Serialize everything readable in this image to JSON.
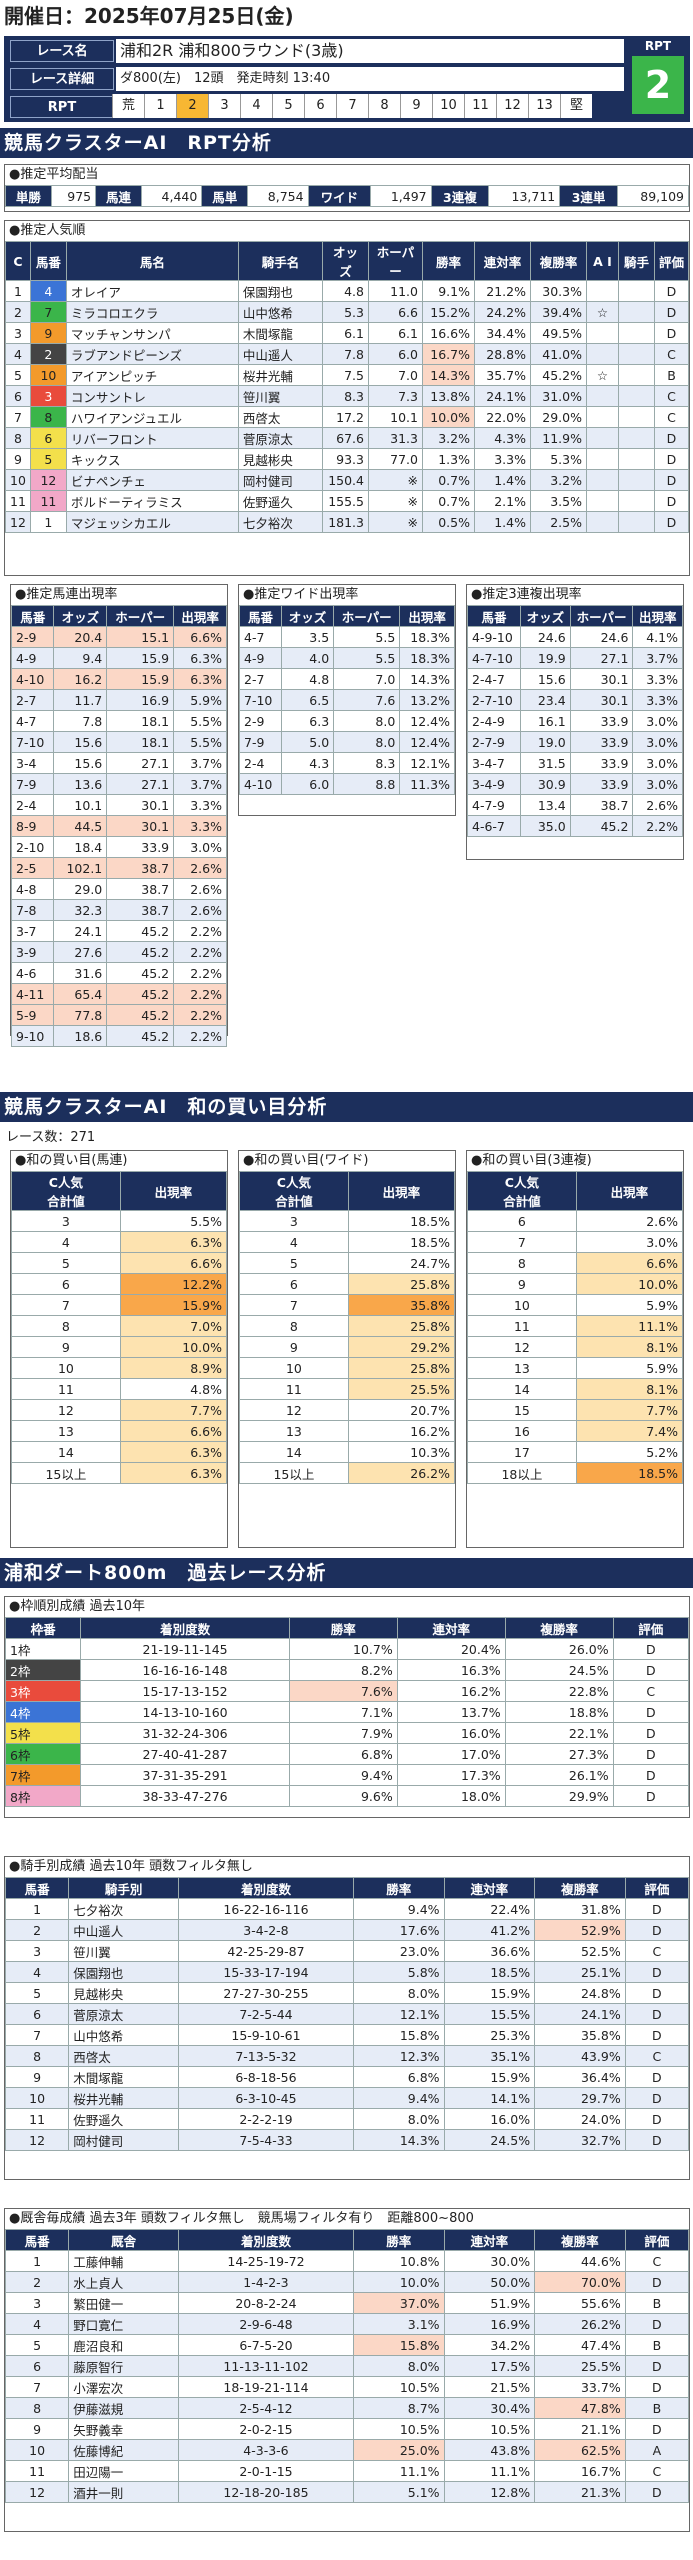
{
  "header": {
    "date_line": "開催日：2025年07月25日(金)",
    "race_name_label": "レース名",
    "race_name": "浦和2R 浦和800ラウンド(3歳)",
    "race_detail_label": "レース詳細",
    "race_detail": "ダ800(左)　12頭　発走時刻 13:40",
    "rpt_label": "RPT",
    "rpt_value": "2",
    "rpt_scale": [
      "荒",
      "1",
      "2",
      "3",
      "4",
      "5",
      "6",
      "7",
      "8",
      "9",
      "10",
      "11",
      "12",
      "13",
      "堅"
    ],
    "rpt_highlight_index": 2
  },
  "section1_title": "競馬クラスターAI　RPT分析",
  "payout": {
    "caption": "●推定平均配当",
    "items": [
      {
        "label": "単勝",
        "value": "975"
      },
      {
        "label": "馬連",
        "value": "4,440"
      },
      {
        "label": "馬単",
        "value": "8,754"
      },
      {
        "label": "ワイド",
        "value": "1,497"
      },
      {
        "label": "3連複",
        "value": "13,711"
      },
      {
        "label": "3連単",
        "value": "89,109"
      }
    ]
  },
  "popularity": {
    "caption": "●推定人気順",
    "headers": [
      "C",
      "馬番",
      "馬名",
      "騎手名",
      "オッズ",
      "ホーパー",
      "勝率",
      "連対率",
      "複勝率",
      "A I",
      "騎手",
      "評価"
    ],
    "rows": [
      [
        "1",
        "4",
        "オレイア",
        "保園翔也",
        "4.8",
        "11.0",
        "9.1%",
        "21.2%",
        "30.3%",
        "",
        "",
        "D"
      ],
      [
        "2",
        "7",
        "ミラコロエクラ",
        "山中悠希",
        "5.3",
        "6.6",
        "15.2%",
        "24.2%",
        "39.4%",
        "☆",
        "",
        "D"
      ],
      [
        "3",
        "9",
        "マッチャンサンパ",
        "木間塚龍",
        "6.1",
        "6.1",
        "16.6%",
        "34.4%",
        "49.5%",
        "",
        "",
        "D"
      ],
      [
        "4",
        "2",
        "ラブアンドピーンズ",
        "中山遥人",
        "7.8",
        "6.0",
        "16.7%",
        "28.8%",
        "41.0%",
        "",
        "",
        "C"
      ],
      [
        "5",
        "10",
        "アイアンピッチ",
        "桜井光輔",
        "7.5",
        "7.0",
        "14.3%",
        "35.7%",
        "45.2%",
        "☆",
        "",
        "B"
      ],
      [
        "6",
        "3",
        "コンサントレ",
        "笹川翼",
        "8.3",
        "7.3",
        "13.8%",
        "24.1%",
        "31.0%",
        "",
        "",
        "C"
      ],
      [
        "7",
        "8",
        "ハワイアンジュエル",
        "西啓太",
        "17.2",
        "10.1",
        "10.0%",
        "22.0%",
        "29.0%",
        "",
        "",
        "C"
      ],
      [
        "8",
        "6",
        "リバーフロント",
        "菅原涼太",
        "67.6",
        "31.3",
        "3.2%",
        "4.3%",
        "11.9%",
        "",
        "",
        "D"
      ],
      [
        "9",
        "5",
        "キックス",
        "見越彬央",
        "93.3",
        "77.0",
        "1.3%",
        "3.3%",
        "5.3%",
        "",
        "",
        "D"
      ],
      [
        "10",
        "12",
        "ビナペンチェ",
        "岡村健司",
        "150.4",
        "※",
        "0.7%",
        "1.4%",
        "3.2%",
        "",
        "",
        "D"
      ],
      [
        "11",
        "11",
        "ボルドーティラミス",
        "佐野遥久",
        "155.5",
        "※",
        "0.7%",
        "2.1%",
        "3.5%",
        "",
        "",
        "D"
      ],
      [
        "12",
        "1",
        "マジェッシカエル",
        "七夕裕次",
        "181.3",
        "※",
        "0.5%",
        "1.4%",
        "2.5%",
        "",
        "",
        "D"
      ]
    ]
  },
  "umaren": {
    "caption": "●推定馬連出現率",
    "headers": [
      "馬番",
      "オッズ",
      "ホーパー",
      "出現率"
    ],
    "rows": [
      [
        "2-9",
        "20.4",
        "15.1",
        "6.6%"
      ],
      [
        "4-9",
        "9.4",
        "15.9",
        "6.3%"
      ],
      [
        "4-10",
        "16.2",
        "15.9",
        "6.3%"
      ],
      [
        "2-7",
        "11.7",
        "16.9",
        "5.9%"
      ],
      [
        "4-7",
        "7.8",
        "18.1",
        "5.5%"
      ],
      [
        "7-10",
        "15.6",
        "18.1",
        "5.5%"
      ],
      [
        "3-4",
        "15.6",
        "27.1",
        "3.7%"
      ],
      [
        "7-9",
        "13.6",
        "27.1",
        "3.7%"
      ],
      [
        "2-4",
        "10.1",
        "30.1",
        "3.3%"
      ],
      [
        "8-9",
        "44.5",
        "30.1",
        "3.3%"
      ],
      [
        "2-10",
        "18.4",
        "33.9",
        "3.0%"
      ],
      [
        "2-5",
        "102.1",
        "38.7",
        "2.6%"
      ],
      [
        "4-8",
        "29.0",
        "38.7",
        "2.6%"
      ],
      [
        "7-8",
        "32.3",
        "38.7",
        "2.6%"
      ],
      [
        "3-7",
        "24.1",
        "45.2",
        "2.2%"
      ],
      [
        "3-9",
        "27.6",
        "45.2",
        "2.2%"
      ],
      [
        "4-6",
        "31.6",
        "45.2",
        "2.2%"
      ],
      [
        "4-11",
        "65.4",
        "45.2",
        "2.2%"
      ],
      [
        "5-9",
        "77.8",
        "45.2",
        "2.2%"
      ],
      [
        "9-10",
        "18.6",
        "45.2",
        "2.2%"
      ]
    ]
  },
  "wide": {
    "caption": "●推定ワイド出現率",
    "headers": [
      "馬番",
      "オッズ",
      "ホーパー",
      "出現率"
    ],
    "rows": [
      [
        "4-7",
        "3.5",
        "5.5",
        "18.3%"
      ],
      [
        "4-9",
        "4.0",
        "5.5",
        "18.3%"
      ],
      [
        "2-7",
        "4.8",
        "7.0",
        "14.3%"
      ],
      [
        "7-10",
        "6.5",
        "7.6",
        "13.2%"
      ],
      [
        "2-9",
        "6.3",
        "8.0",
        "12.4%"
      ],
      [
        "7-9",
        "5.0",
        "8.0",
        "12.4%"
      ],
      [
        "2-4",
        "4.3",
        "8.3",
        "12.1%"
      ],
      [
        "4-10",
        "6.0",
        "8.8",
        "11.3%"
      ]
    ]
  },
  "trio": {
    "caption": "●推定3連複出現率",
    "headers": [
      "馬番",
      "オッズ",
      "ホーパー",
      "出現率"
    ],
    "rows": [
      [
        "4-9-10",
        "24.6",
        "24.6",
        "4.1%"
      ],
      [
        "4-7-10",
        "19.9",
        "27.1",
        "3.7%"
      ],
      [
        "2-4-7",
        "15.6",
        "30.1",
        "3.3%"
      ],
      [
        "2-7-10",
        "23.4",
        "30.1",
        "3.3%"
      ],
      [
        "2-4-9",
        "16.1",
        "33.9",
        "3.0%"
      ],
      [
        "2-7-9",
        "19.0",
        "33.9",
        "3.0%"
      ],
      [
        "3-4-7",
        "31.5",
        "33.9",
        "3.0%"
      ],
      [
        "3-4-9",
        "30.9",
        "33.9",
        "3.0%"
      ],
      [
        "4-7-9",
        "13.4",
        "38.7",
        "2.6%"
      ],
      [
        "4-6-7",
        "35.0",
        "45.2",
        "2.2%"
      ]
    ]
  },
  "section2_title": "競馬クラスターAI　和の買い目分析",
  "race_count": "レース数：271",
  "wa_umaren": {
    "caption": "●和の買い目(馬連)",
    "headers": [
      "C人気\n合計値",
      "出現率"
    ],
    "rows": [
      [
        "3",
        "5.5%"
      ],
      [
        "4",
        "6.3%"
      ],
      [
        "5",
        "6.6%"
      ],
      [
        "6",
        "12.2%"
      ],
      [
        "7",
        "15.9%"
      ],
      [
        "8",
        "7.0%"
      ],
      [
        "9",
        "10.0%"
      ],
      [
        "10",
        "8.9%"
      ],
      [
        "11",
        "4.8%"
      ],
      [
        "12",
        "7.7%"
      ],
      [
        "13",
        "6.6%"
      ],
      [
        "14",
        "6.3%"
      ],
      [
        "15以上",
        "6.3%"
      ]
    ]
  },
  "wa_wide": {
    "caption": "●和の買い目(ワイド)",
    "headers": [
      "C人気\n合計値",
      "出現率"
    ],
    "rows": [
      [
        "3",
        "18.5%"
      ],
      [
        "4",
        "18.5%"
      ],
      [
        "5",
        "24.7%"
      ],
      [
        "6",
        "25.8%"
      ],
      [
        "7",
        "35.8%"
      ],
      [
        "8",
        "25.8%"
      ],
      [
        "9",
        "29.2%"
      ],
      [
        "10",
        "25.8%"
      ],
      [
        "11",
        "25.5%"
      ],
      [
        "12",
        "20.7%"
      ],
      [
        "13",
        "16.2%"
      ],
      [
        "14",
        "10.3%"
      ],
      [
        "15以上",
        "26.2%"
      ]
    ]
  },
  "wa_trio": {
    "caption": "●和の買い目(3連複)",
    "headers": [
      "C人気\n合計値",
      "出現率"
    ],
    "rows": [
      [
        "6",
        "2.6%"
      ],
      [
        "7",
        "3.0%"
      ],
      [
        "8",
        "6.6%"
      ],
      [
        "9",
        "10.0%"
      ],
      [
        "10",
        "5.9%"
      ],
      [
        "11",
        "11.1%"
      ],
      [
        "12",
        "8.1%"
      ],
      [
        "13",
        "5.9%"
      ],
      [
        "14",
        "8.1%"
      ],
      [
        "15",
        "7.7%"
      ],
      [
        "16",
        "7.4%"
      ],
      [
        "17",
        "5.2%"
      ],
      [
        "18以上",
        "18.5%"
      ]
    ]
  },
  "section3_title": "浦和ダート800m　過去レース分析",
  "waku": {
    "caption": "●枠順別成績 過去10年",
    "headers": [
      "枠番",
      "着別度数",
      "勝率",
      "連対率",
      "複勝率",
      "評価"
    ],
    "rows": [
      [
        "1枠",
        "21-19-11-145",
        "10.7%",
        "20.4%",
        "26.0%",
        "D"
      ],
      [
        "2枠",
        "16-16-16-148",
        "8.2%",
        "16.3%",
        "24.5%",
        "D"
      ],
      [
        "3枠",
        "15-17-13-152",
        "7.6%",
        "16.2%",
        "22.8%",
        "C"
      ],
      [
        "4枠",
        "14-13-10-160",
        "7.1%",
        "13.7%",
        "18.8%",
        "D"
      ],
      [
        "5枠",
        "31-32-24-306",
        "7.9%",
        "16.0%",
        "22.1%",
        "D"
      ],
      [
        "6枠",
        "27-40-41-287",
        "6.8%",
        "17.0%",
        "27.3%",
        "D"
      ],
      [
        "7枠",
        "37-31-35-291",
        "9.4%",
        "17.3%",
        "26.1%",
        "D"
      ],
      [
        "8枠",
        "38-33-47-276",
        "9.6%",
        "18.0%",
        "29.9%",
        "D"
      ]
    ]
  },
  "jockey": {
    "caption": "●騎手別成績 過去10年 頭数フィルタ無し",
    "headers": [
      "馬番",
      "騎手別",
      "着別度数",
      "勝率",
      "連対率",
      "複勝率",
      "評価"
    ],
    "rows": [
      [
        "1",
        "七夕裕次",
        "16-22-16-116",
        "9.4%",
        "22.4%",
        "31.8%",
        "D"
      ],
      [
        "2",
        "中山遥人",
        "3-4-2-8",
        "17.6%",
        "41.2%",
        "52.9%",
        "D"
      ],
      [
        "3",
        "笹川翼",
        "42-25-29-87",
        "23.0%",
        "36.6%",
        "52.5%",
        "C"
      ],
      [
        "4",
        "保園翔也",
        "15-33-17-194",
        "5.8%",
        "18.5%",
        "25.1%",
        "D"
      ],
      [
        "5",
        "見越彬央",
        "27-27-30-255",
        "8.0%",
        "15.9%",
        "24.8%",
        "D"
      ],
      [
        "6",
        "菅原涼太",
        "7-2-5-44",
        "12.1%",
        "15.5%",
        "24.1%",
        "D"
      ],
      [
        "7",
        "山中悠希",
        "15-9-10-61",
        "15.8%",
        "25.3%",
        "35.8%",
        "D"
      ],
      [
        "8",
        "西啓太",
        "7-13-5-32",
        "12.3%",
        "35.1%",
        "43.9%",
        "C"
      ],
      [
        "9",
        "木間塚龍",
        "6-8-18-56",
        "6.8%",
        "15.9%",
        "36.4%",
        "D"
      ],
      [
        "10",
        "桜井光輔",
        "6-3-10-45",
        "9.4%",
        "14.1%",
        "29.7%",
        "D"
      ],
      [
        "11",
        "佐野遥久",
        "2-2-2-19",
        "8.0%",
        "16.0%",
        "24.0%",
        "D"
      ],
      [
        "12",
        "岡村健司",
        "7-5-4-33",
        "14.3%",
        "24.5%",
        "32.7%",
        "D"
      ]
    ]
  },
  "trainer": {
    "caption": "●厩舎毎成績 過去3年 頭数フィルタ無し　競馬場フィルタ有り　距離800~800",
    "headers": [
      "馬番",
      "厩舎",
      "着別度数",
      "勝率",
      "連対率",
      "複勝率",
      "評価"
    ],
    "rows": [
      [
        "1",
        "工藤伸輔",
        "14-25-19-72",
        "10.8%",
        "30.0%",
        "44.6%",
        "C"
      ],
      [
        "2",
        "水上貞人",
        "1-4-2-3",
        "10.0%",
        "50.0%",
        "70.0%",
        "D"
      ],
      [
        "3",
        "繁田健一",
        "20-8-2-24",
        "37.0%",
        "51.9%",
        "55.6%",
        "B"
      ],
      [
        "4",
        "野口寛仁",
        "2-9-6-48",
        "3.1%",
        "16.9%",
        "26.2%",
        "D"
      ],
      [
        "5",
        "鹿沼良和",
        "6-7-5-20",
        "15.8%",
        "34.2%",
        "47.4%",
        "B"
      ],
      [
        "6",
        "藤原智行",
        "11-13-11-102",
        "8.0%",
        "17.5%",
        "25.5%",
        "D"
      ],
      [
        "7",
        "小澤宏次",
        "18-19-21-114",
        "10.5%",
        "21.5%",
        "33.7%",
        "D"
      ],
      [
        "8",
        "伊藤滋規",
        "2-5-4-12",
        "8.7%",
        "30.4%",
        "47.8%",
        "B"
      ],
      [
        "9",
        "矢野義幸",
        "2-0-2-15",
        "10.5%",
        "10.5%",
        "21.1%",
        "D"
      ],
      [
        "10",
        "佐藤博紀",
        "4-3-3-6",
        "25.0%",
        "43.8%",
        "62.5%",
        "A"
      ],
      [
        "11",
        "田辺陽一",
        "2-0-1-15",
        "11.1%",
        "11.1%",
        "16.7%",
        "C"
      ],
      [
        "12",
        "酒井一則",
        "12-18-20-185",
        "5.1%",
        "12.8%",
        "21.3%",
        "D"
      ]
    ]
  },
  "colors": {
    "navy": "#1c2f5c",
    "rpt_green": "#3bb54a",
    "highlight_orange": "#f9a74a",
    "highlight_pink": "#fbd7c6"
  }
}
